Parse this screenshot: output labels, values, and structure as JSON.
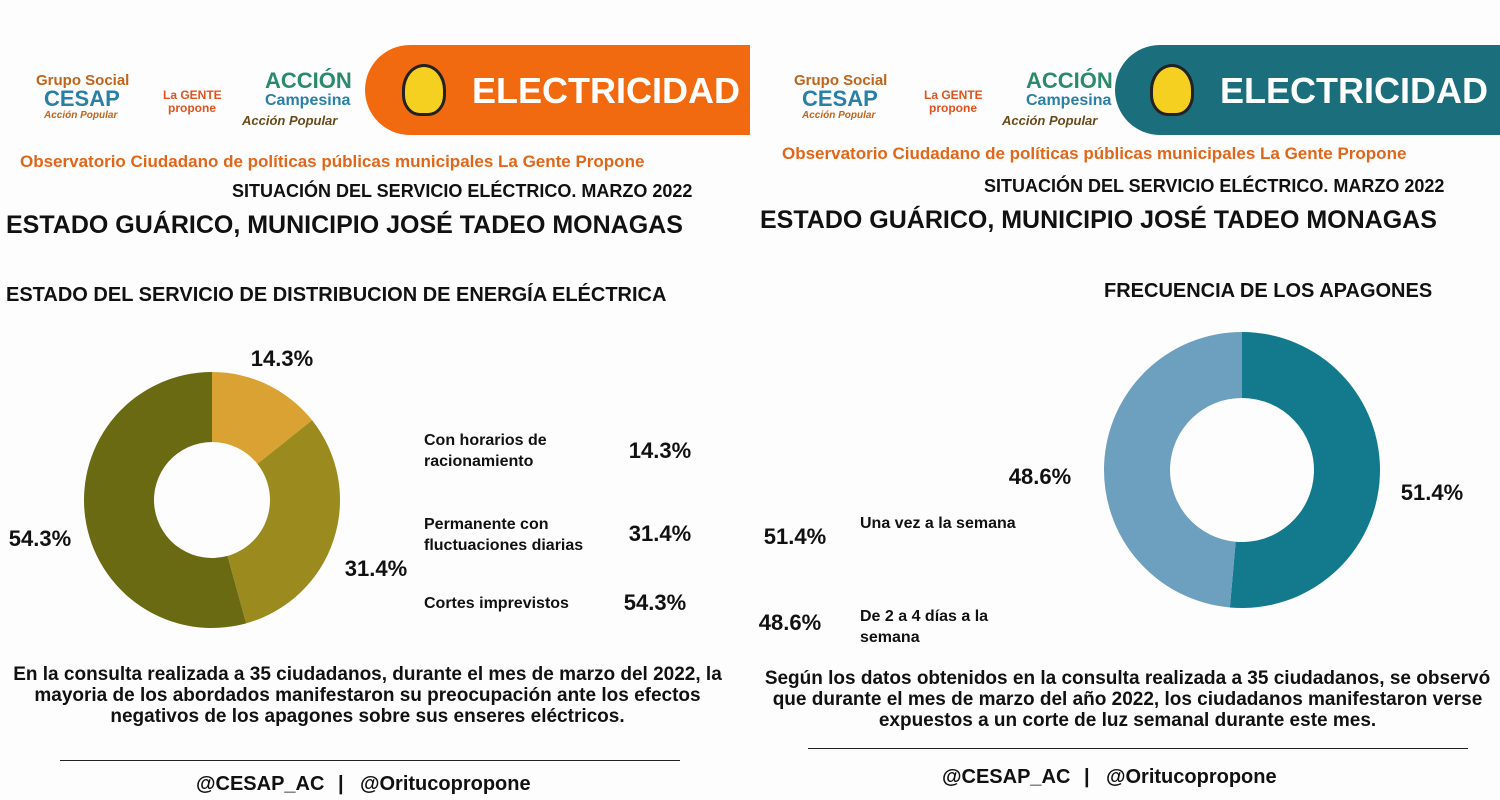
{
  "panels": [
    {
      "logo1": "Grupo Social",
      "logo1b": "CESAP",
      "logo1c": "Acción Popular",
      "logo2": "La GENTE",
      "logo2b": "propone",
      "logo3": "ACCIÓN",
      "logo3b": "Campesina",
      "logo3c": "Acción Popular",
      "banner": "ELECTRICIDAD",
      "observatory": "Observatorio Ciudadano de políticas públicas municipales La Gente Propone",
      "situation": "SITUACIÓN DEL SERVICIO ELÉCTRICO. MARZO 2022",
      "location": "ESTADO GUÁRICO, MUNICIPIO JOSÉ TADEO MONAGAS",
      "paragraph": "En la consulta realizada a 35 ciudadanos, durante el mes de marzo del 2022, la mayoria de los abordados manifestaron  su preocupación ante los efectos negativos de los apagones sobre sus enseres eléctricos.",
      "footer1": "@CESAP_AC",
      "separator": "|",
      "footer2": "@Oritucopropone"
    },
    {
      "logo1": "Grupo Social",
      "logo1b": "CESAP",
      "logo1c": "Acción Popular",
      "logo2": "La GENTE",
      "logo2b": "propone",
      "logo3": "ACCIÓN",
      "logo3b": "Campesina",
      "logo3c": "Acción Popular",
      "banner": "ELECTRICIDAD",
      "observatory": "Observatorio Ciudadano de políticas públicas municipales La Gente Propone",
      "situation": "SITUACIÓN DEL SERVICIO ELÉCTRICO. MARZO 2022",
      "location": "ESTADO GUÁRICO, MUNICIPIO JOSÉ TADEO MONAGAS",
      "paragraph": "Según los datos obtenidos en la consulta realizada a 35 ciudadanos, se observó que durante el mes de marzo del año 2022, los ciudadanos manifestaron verse expuestos a un corte de luz semanal durante este mes.",
      "footer1": "@CESAP_AC",
      "separator": "|",
      "footer2": "@Oritucopropone"
    }
  ],
  "chart_data": [
    {
      "type": "pie",
      "donut": true,
      "title": "ESTADO DEL SERVICIO DE  DISTRIBUCION DE ENERGÍA ELÉCTRICA",
      "categories": [
        "Con horarios de racionamiento",
        "Permanente con fluctuaciones diarias",
        "Cortes imprevistos"
      ],
      "values": [
        14.3,
        31.4,
        54.3
      ],
      "value_labels": [
        "14.3%",
        "31.4%",
        "54.3%"
      ],
      "colors": [
        "#d9a232",
        "#9b8a1d",
        "#6a6a12"
      ]
    },
    {
      "type": "pie",
      "donut": true,
      "title": "FRECUENCIA DE LOS APAGONES",
      "categories": [
        "Una vez a la semana",
        "De 2 a 4 días a la semana"
      ],
      "values": [
        51.4,
        48.6
      ],
      "value_labels": [
        "51.4%",
        "48.6%"
      ],
      "colors": [
        "#127a8c",
        "#6d9fbf"
      ]
    }
  ]
}
